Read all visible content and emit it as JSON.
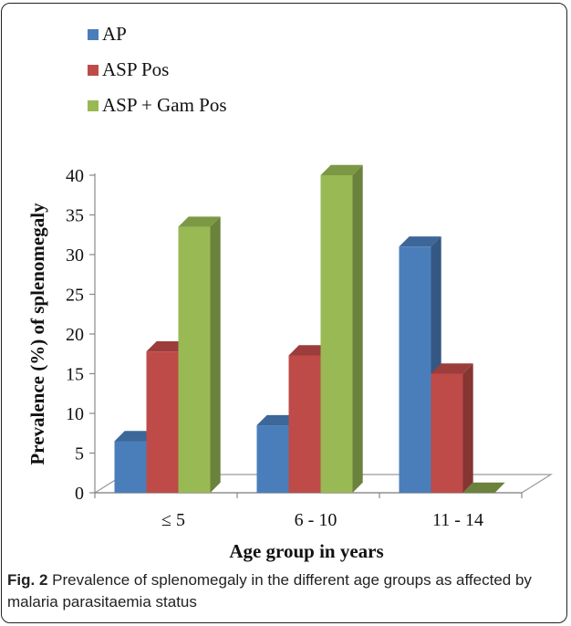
{
  "legend": [
    {
      "label": "AP",
      "color": "#4a7ebb"
    },
    {
      "label": "ASP Pos",
      "color": "#be4b48"
    },
    {
      "label": "ASP + Gam Pos",
      "color": "#98b954"
    }
  ],
  "caption": {
    "fig_label": "Fig. 2",
    "text": " Prevalence of splenomegaly in the different age groups as affected by malaria parasitaemia status"
  },
  "chart_data": {
    "type": "bar",
    "categories": [
      "≤ 5",
      "6 - 10",
      "11 - 14"
    ],
    "series": [
      {
        "name": "AP",
        "values": [
          6.5,
          8.5,
          31
        ],
        "color": "#4a7ebb"
      },
      {
        "name": "ASP Pos",
        "values": [
          17.8,
          17.3,
          15
        ],
        "color": "#be4b48"
      },
      {
        "name": "ASP + Gam Pos",
        "values": [
          33.5,
          40,
          0
        ],
        "color": "#98b954"
      }
    ],
    "xlabel": "Age group in years",
    "ylabel": "Prevalence (%) of splenomegaly",
    "ylim": [
      0,
      40
    ],
    "yticks": [
      "0",
      "5",
      "10",
      "15",
      "20",
      "25",
      "30",
      "35",
      "40"
    ],
    "legend_position": "top-left",
    "grid": false
  }
}
